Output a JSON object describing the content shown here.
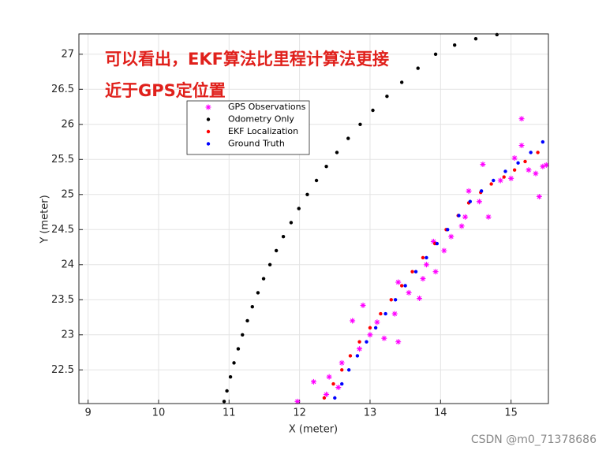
{
  "chart_data": {
    "type": "scatter",
    "annotation": [
      "可以看出，EKF算法比里程计算法更接",
      "近于GPS定位置"
    ],
    "xlabel": "X (meter)",
    "ylabel": "Y (meter)",
    "watermark": "CSDN @m0_71378686",
    "xlim": [
      8.87,
      15.53
    ],
    "ylim": [
      22.02,
      27.29
    ],
    "xticks": [
      9,
      10,
      11,
      12,
      13,
      14,
      15
    ],
    "yticks": [
      22.5,
      23,
      23.5,
      24,
      24.5,
      25,
      25.5,
      26,
      26.5,
      27
    ],
    "grid": true,
    "legend": "upper-left",
    "series": [
      {
        "name": "GPS Observations",
        "color": "#ff00ff",
        "marker": "asterisk",
        "x": [
          11.97,
          12.2,
          12.42,
          12.38,
          12.55,
          12.6,
          12.75,
          12.9,
          12.85,
          13.0,
          13.1,
          13.2,
          13.4,
          13.35,
          13.4,
          13.55,
          13.7,
          13.75,
          13.8,
          13.9,
          13.93,
          14.05,
          14.15,
          14.3,
          14.35,
          14.4,
          14.55,
          14.6,
          14.68,
          14.85,
          15.0,
          15.05,
          15.15,
          15.15,
          15.25,
          15.35,
          15.4,
          15.45,
          15.5
        ],
        "values": [
          22.05,
          22.33,
          22.4,
          22.15,
          22.25,
          22.6,
          23.2,
          23.42,
          22.8,
          23.0,
          23.18,
          22.95,
          22.9,
          23.3,
          23.75,
          23.6,
          23.52,
          23.8,
          24.0,
          24.33,
          23.9,
          24.2,
          24.4,
          24.55,
          24.68,
          25.05,
          24.9,
          25.43,
          24.68,
          25.2,
          25.23,
          25.52,
          26.08,
          25.7,
          25.35,
          25.3,
          24.97,
          25.4,
          25.42
        ]
      },
      {
        "name": "Odometry Only",
        "color": "#000000",
        "marker": "dot",
        "x": [
          10.93,
          10.97,
          11.02,
          11.07,
          11.13,
          11.19,
          11.26,
          11.33,
          11.41,
          11.49,
          11.58,
          11.67,
          11.77,
          11.88,
          11.99,
          12.11,
          12.24,
          12.38,
          12.53,
          12.69,
          12.86,
          13.04,
          13.24,
          13.45,
          13.68,
          13.93,
          14.2,
          14.5,
          14.8
        ],
        "values": [
          22.05,
          22.2,
          22.4,
          22.6,
          22.8,
          23.0,
          23.2,
          23.4,
          23.6,
          23.8,
          24.0,
          24.2,
          24.4,
          24.6,
          24.8,
          25.0,
          25.2,
          25.4,
          25.6,
          25.8,
          26.0,
          26.2,
          26.4,
          26.6,
          26.8,
          27.0,
          27.13,
          27.22,
          27.28
        ]
      },
      {
        "name": "EKF Localization",
        "color": "#ff0000",
        "marker": "dot",
        "x": [
          12.35,
          12.48,
          12.6,
          12.72,
          12.85,
          13.0,
          13.15,
          13.3,
          13.45,
          13.6,
          13.75,
          13.92,
          14.08,
          14.25,
          14.4,
          14.57,
          14.72,
          14.9,
          15.05,
          15.2,
          15.38
        ],
        "values": [
          22.1,
          22.3,
          22.5,
          22.7,
          22.9,
          23.1,
          23.3,
          23.5,
          23.7,
          23.9,
          24.1,
          24.3,
          24.5,
          24.7,
          24.88,
          25.03,
          25.15,
          25.25,
          25.35,
          25.47,
          25.6
        ]
      },
      {
        "name": "Ground Truth",
        "color": "#0000ff",
        "marker": "dot",
        "x": [
          12.5,
          12.6,
          12.7,
          12.82,
          12.95,
          13.08,
          13.22,
          13.36,
          13.5,
          13.65,
          13.8,
          13.95,
          14.1,
          14.26,
          14.42,
          14.58,
          14.75,
          14.92,
          15.1,
          15.28,
          15.45
        ],
        "values": [
          22.1,
          22.3,
          22.5,
          22.7,
          22.9,
          23.1,
          23.3,
          23.5,
          23.7,
          23.9,
          24.1,
          24.3,
          24.5,
          24.7,
          24.9,
          25.05,
          25.2,
          25.33,
          25.45,
          25.6,
          25.75
        ]
      }
    ]
  }
}
